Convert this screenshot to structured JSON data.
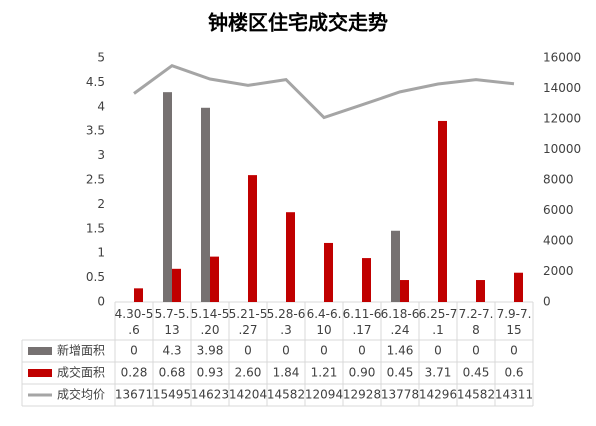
{
  "chart_data": {
    "type": "bar-line-table",
    "title": "钟楼区住宅成交走势",
    "categories": [
      "4.30-5.6",
      "5.7-5.13",
      "5.14-5.20",
      "5.21-5.27",
      "5.28-6.3",
      "6.4-6.10",
      "6.11-6.17",
      "6.18-6.24",
      "6.25-7.1",
      "7.2-7.8",
      "7.9-7.15"
    ],
    "series": [
      {
        "name": "新增面积",
        "color": "#767171",
        "type": "bar",
        "values": [
          0,
          4.3,
          3.98,
          0,
          0,
          0,
          0,
          1.46,
          0,
          0,
          0
        ]
      },
      {
        "name": "成交面积",
        "color": "#c00000",
        "type": "bar",
        "values": [
          0.28,
          0.68,
          0.93,
          2.6,
          1.84,
          1.21,
          0.9,
          0.45,
          3.71,
          0.45,
          0.6
        ],
        "value_labels": [
          "0.28",
          "0.68",
          "0.93",
          "2.60",
          "1.84",
          "1.21",
          "0.90",
          "0.45",
          "3.71",
          "0.45",
          "0.6"
        ]
      },
      {
        "name": "成交均价",
        "color": "#a5a5a5",
        "type": "line",
        "axis": "y2",
        "values": [
          13671,
          15495,
          14623,
          14204,
          14582,
          12094,
          12928,
          13778,
          14296,
          14582,
          14311
        ]
      }
    ],
    "ylim": [
      0,
      5
    ],
    "yticks": [
      0,
      0.5,
      1,
      1.5,
      2,
      2.5,
      3,
      3.5,
      4,
      4.5,
      5
    ],
    "y2lim": [
      0,
      16000
    ],
    "y2ticks": [
      0,
      2000,
      4000,
      6000,
      8000,
      10000,
      12000,
      14000,
      16000
    ]
  }
}
